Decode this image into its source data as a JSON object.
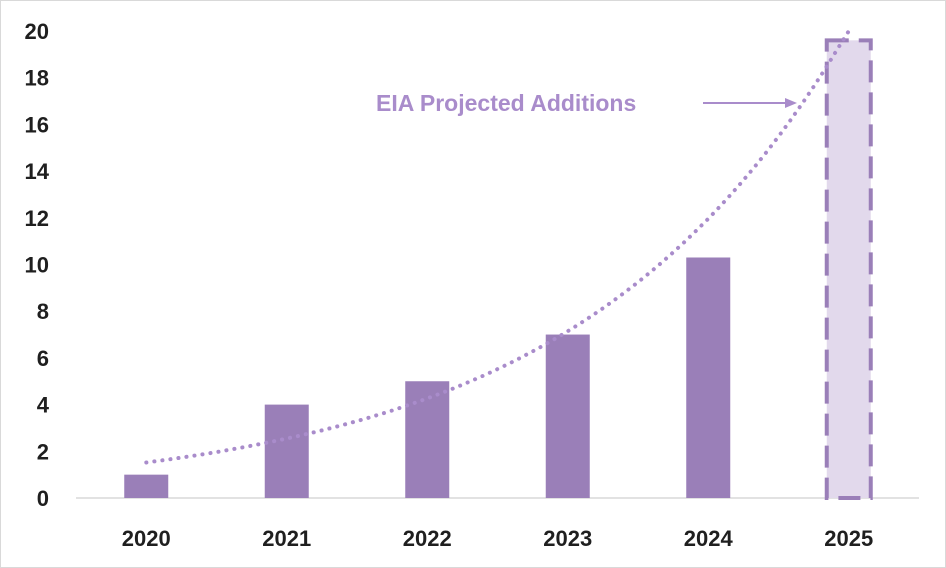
{
  "chart_data": {
    "type": "bar",
    "categories": [
      "2020",
      "2021",
      "2022",
      "2023",
      "2024",
      "2025"
    ],
    "values": [
      1,
      4,
      5,
      7,
      10.3,
      19.6
    ],
    "projected": [
      false,
      false,
      false,
      false,
      false,
      true
    ],
    "trendline": "exponential, dotted",
    "annotation": {
      "text": "EIA Projected Additions",
      "points_to": "2025"
    },
    "y_ticks": [
      "0",
      "2",
      "4",
      "6",
      "8",
      "10",
      "12",
      "14",
      "16",
      "18",
      "20"
    ],
    "ylim": [
      0,
      20
    ],
    "title": "",
    "xlabel": "",
    "ylabel": "",
    "grid": false,
    "legend": "none",
    "colors": {
      "bar": "#9a7fb8",
      "projected_fill": "#e2d9ec",
      "projected_border": "#9a7fb8",
      "trend": "#a98ccb",
      "annotation": "#a98ccb",
      "axis": "#d9d9d9",
      "text": "#1f1f1f"
    }
  }
}
